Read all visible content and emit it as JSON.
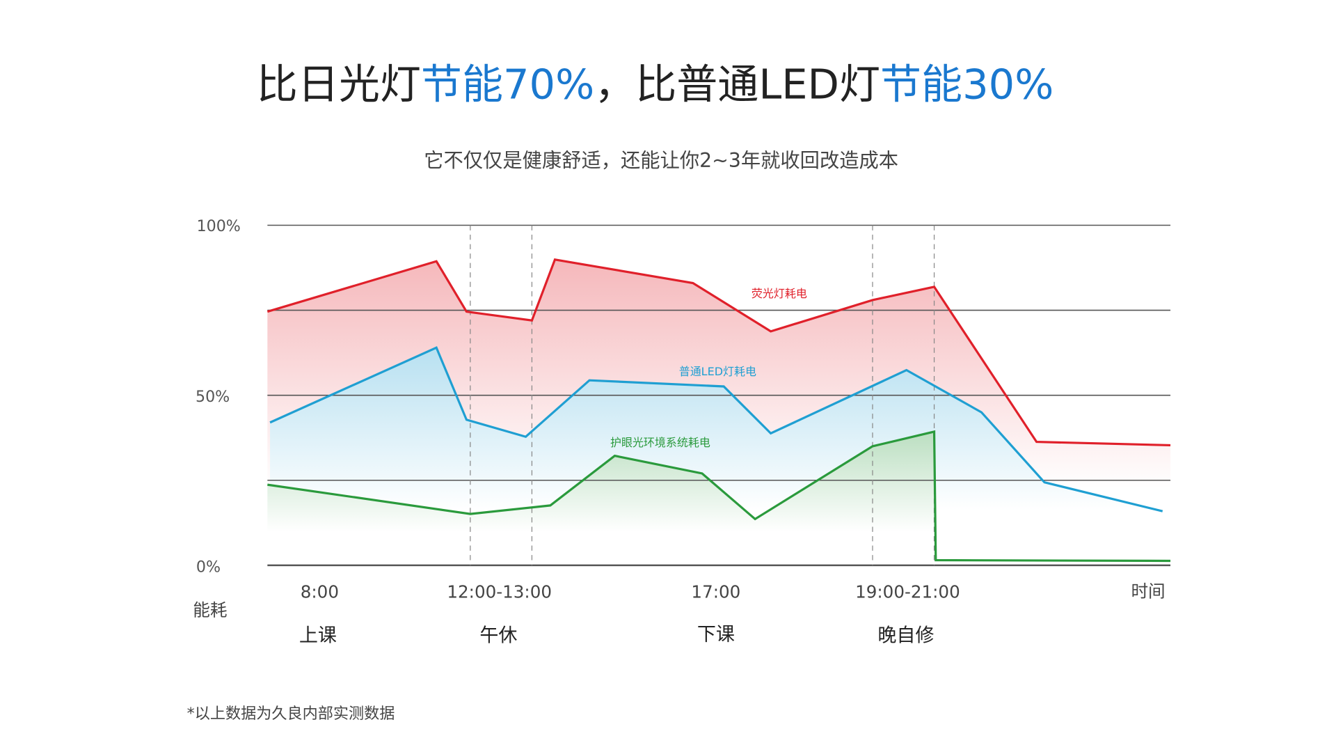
{
  "header": {
    "title_parts": [
      {
        "text": "比日光灯",
        "color": "#222222"
      },
      {
        "text": "节能70%",
        "color": "#1a78cf"
      },
      {
        "text": "，比普通LED灯",
        "color": "#222222"
      },
      {
        "text": "节能30%",
        "color": "#1a78cf"
      }
    ],
    "subtitle": "它不仅仅是健康舒适，还能让你2~3年就收回改造成本"
  },
  "chart_data": {
    "type": "area",
    "ylabel": "能耗",
    "xlabel": "时间",
    "ylim": [
      0,
      100
    ],
    "y_ticks": [
      "100%",
      "50%",
      "0%"
    ],
    "gridlines_y": [
      0,
      25,
      50,
      75,
      100
    ],
    "grid": true,
    "x_tick_labels": [
      "8:00",
      "12:00-13:00",
      "17:00",
      "19:00-21:00"
    ],
    "period_labels": [
      "上课",
      "午休",
      "下课",
      "晚自修"
    ],
    "dashed_markers_hours": [
      12,
      13,
      19,
      21
    ],
    "series": [
      {
        "name": "荧光灯耗电",
        "color": "#e0202a",
        "x": [
          7.0,
          11.1,
          11.9,
          13.0,
          13.5,
          16.5,
          17.7,
          19.0,
          21.0,
          22.3,
          24.0
        ],
        "y": [
          74.6,
          89.4,
          74.6,
          72.0,
          89.9,
          83.0,
          68.8,
          78.0,
          81.9,
          36.3,
          35.3
        ]
      },
      {
        "name": "普通LED灯耗电",
        "color": "#1f9fd2",
        "x": [
          7.05,
          11.1,
          11.9,
          12.9,
          14.25,
          17.1,
          17.7,
          20.1,
          21.6,
          22.4,
          23.9
        ],
        "y": [
          42.0,
          64.0,
          42.8,
          37.8,
          54.4,
          52.6,
          38.8,
          57.4,
          45.0,
          24.4,
          15.9
        ]
      },
      {
        "name": "护眼光环境系统耗电",
        "color": "#2a9a3c",
        "x": [
          7.0,
          12.0,
          13.4,
          14.8,
          16.7,
          17.5,
          19.0,
          21.0,
          21.02,
          24.0
        ],
        "y": [
          23.7,
          15.1,
          17.6,
          32.2,
          27.0,
          13.6,
          35.0,
          39.3,
          1.5,
          1.3
        ]
      }
    ]
  },
  "footnote": "*以上数据为久良内部实测数据"
}
